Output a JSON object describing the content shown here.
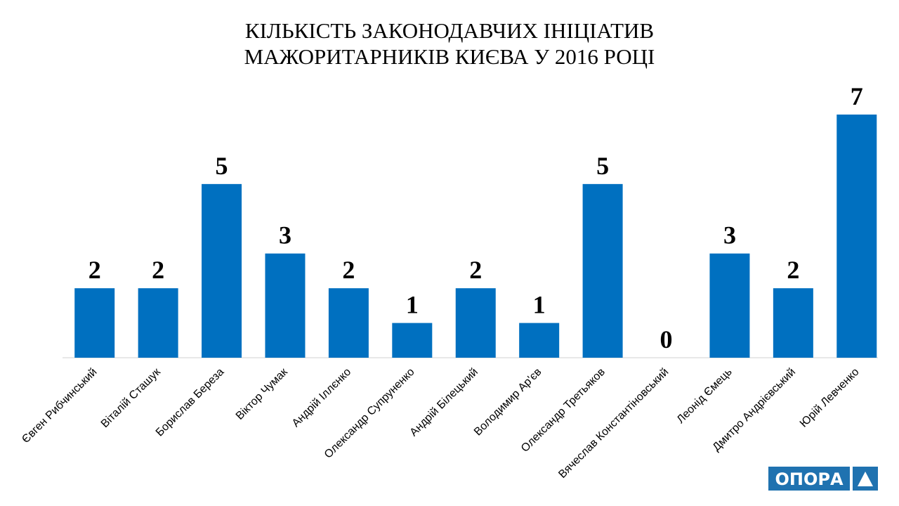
{
  "chart_data": {
    "type": "bar",
    "title": [
      "КІЛЬКІСТЬ ЗАКОНОДАВЧИХ ІНІЦІАТИВ",
      "МАЖОРИТАРНИКІВ КИЄВА У 2016 РОЦІ"
    ],
    "categories": [
      "Євген Рибчинський",
      "Віталій Сташук",
      "Борислав Береза",
      "Віктор Чумак",
      "Андрій Іллєнко",
      "Олександр Супруненко",
      "Андрій Білецький",
      "Володимир Ар'єв",
      "Олександр Третьяков",
      "Вячеслав Константіновський",
      "Леонід Ємець",
      "Дмитро Андрієвський",
      "Юрій Левченко"
    ],
    "values": [
      2,
      2,
      5,
      3,
      2,
      1,
      2,
      1,
      5,
      0,
      3,
      2,
      7
    ],
    "color": "#0070c0",
    "ylim": [
      0,
      7
    ]
  },
  "logo": "ОПОРА"
}
